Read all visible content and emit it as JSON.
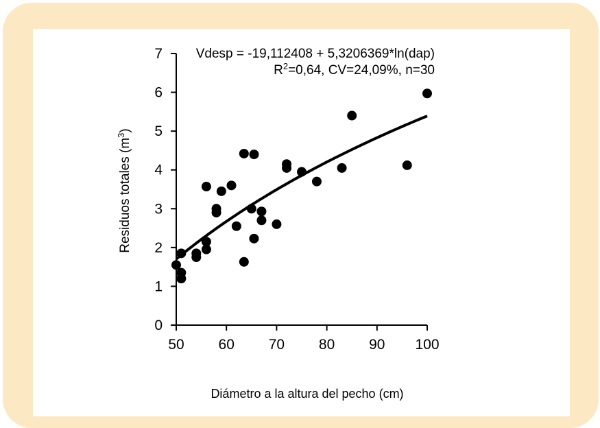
{
  "colors": {
    "frame": "#fde8c4",
    "panel": "#ffffff",
    "ink": "#000000"
  },
  "chart_data": {
    "type": "scatter",
    "xlabel": "Diámetro a la altura del pecho (cm)",
    "ylabel": "Residuos totales (m³)",
    "xlim": [
      50,
      100
    ],
    "ylim": [
      0,
      7
    ],
    "x_ticks": [
      "50",
      "60",
      "70",
      "80",
      "90",
      "100"
    ],
    "y_ticks": [
      "0",
      "1",
      "2",
      "3",
      "4",
      "5",
      "6",
      "7"
    ],
    "grid": false,
    "annotation_line1": "Vdesp = -19,112408 + 5,3206369*ln(dap)",
    "annotation_line2": "R²=0,64, CV=24,09%, n=30",
    "trendline": {
      "type": "logarithmic",
      "intercept": -19.112408,
      "slope": 5.3206369,
      "x_range": [
        50,
        100
      ]
    },
    "points": [
      [
        50,
        1.55
      ],
      [
        51,
        1.85
      ],
      [
        51,
        1.35
      ],
      [
        51,
        1.2
      ],
      [
        54,
        1.85
      ],
      [
        54,
        1.75
      ],
      [
        56,
        3.57
      ],
      [
        56,
        2.15
      ],
      [
        56,
        1.95
      ],
      [
        58,
        3.0
      ],
      [
        58,
        2.9
      ],
      [
        59,
        3.45
      ],
      [
        61,
        3.6
      ],
      [
        62,
        2.55
      ],
      [
        63.5,
        4.42
      ],
      [
        63.5,
        1.63
      ],
      [
        65,
        3.0
      ],
      [
        65.5,
        4.4
      ],
      [
        65.5,
        2.23
      ],
      [
        67,
        2.93
      ],
      [
        67,
        2.7
      ],
      [
        70,
        2.6
      ],
      [
        72,
        4.15
      ],
      [
        72,
        4.05
      ],
      [
        75,
        3.95
      ],
      [
        78,
        3.7
      ],
      [
        83,
        4.05
      ],
      [
        85,
        5.4
      ],
      [
        96,
        4.12
      ],
      [
        100,
        5.97
      ]
    ]
  }
}
